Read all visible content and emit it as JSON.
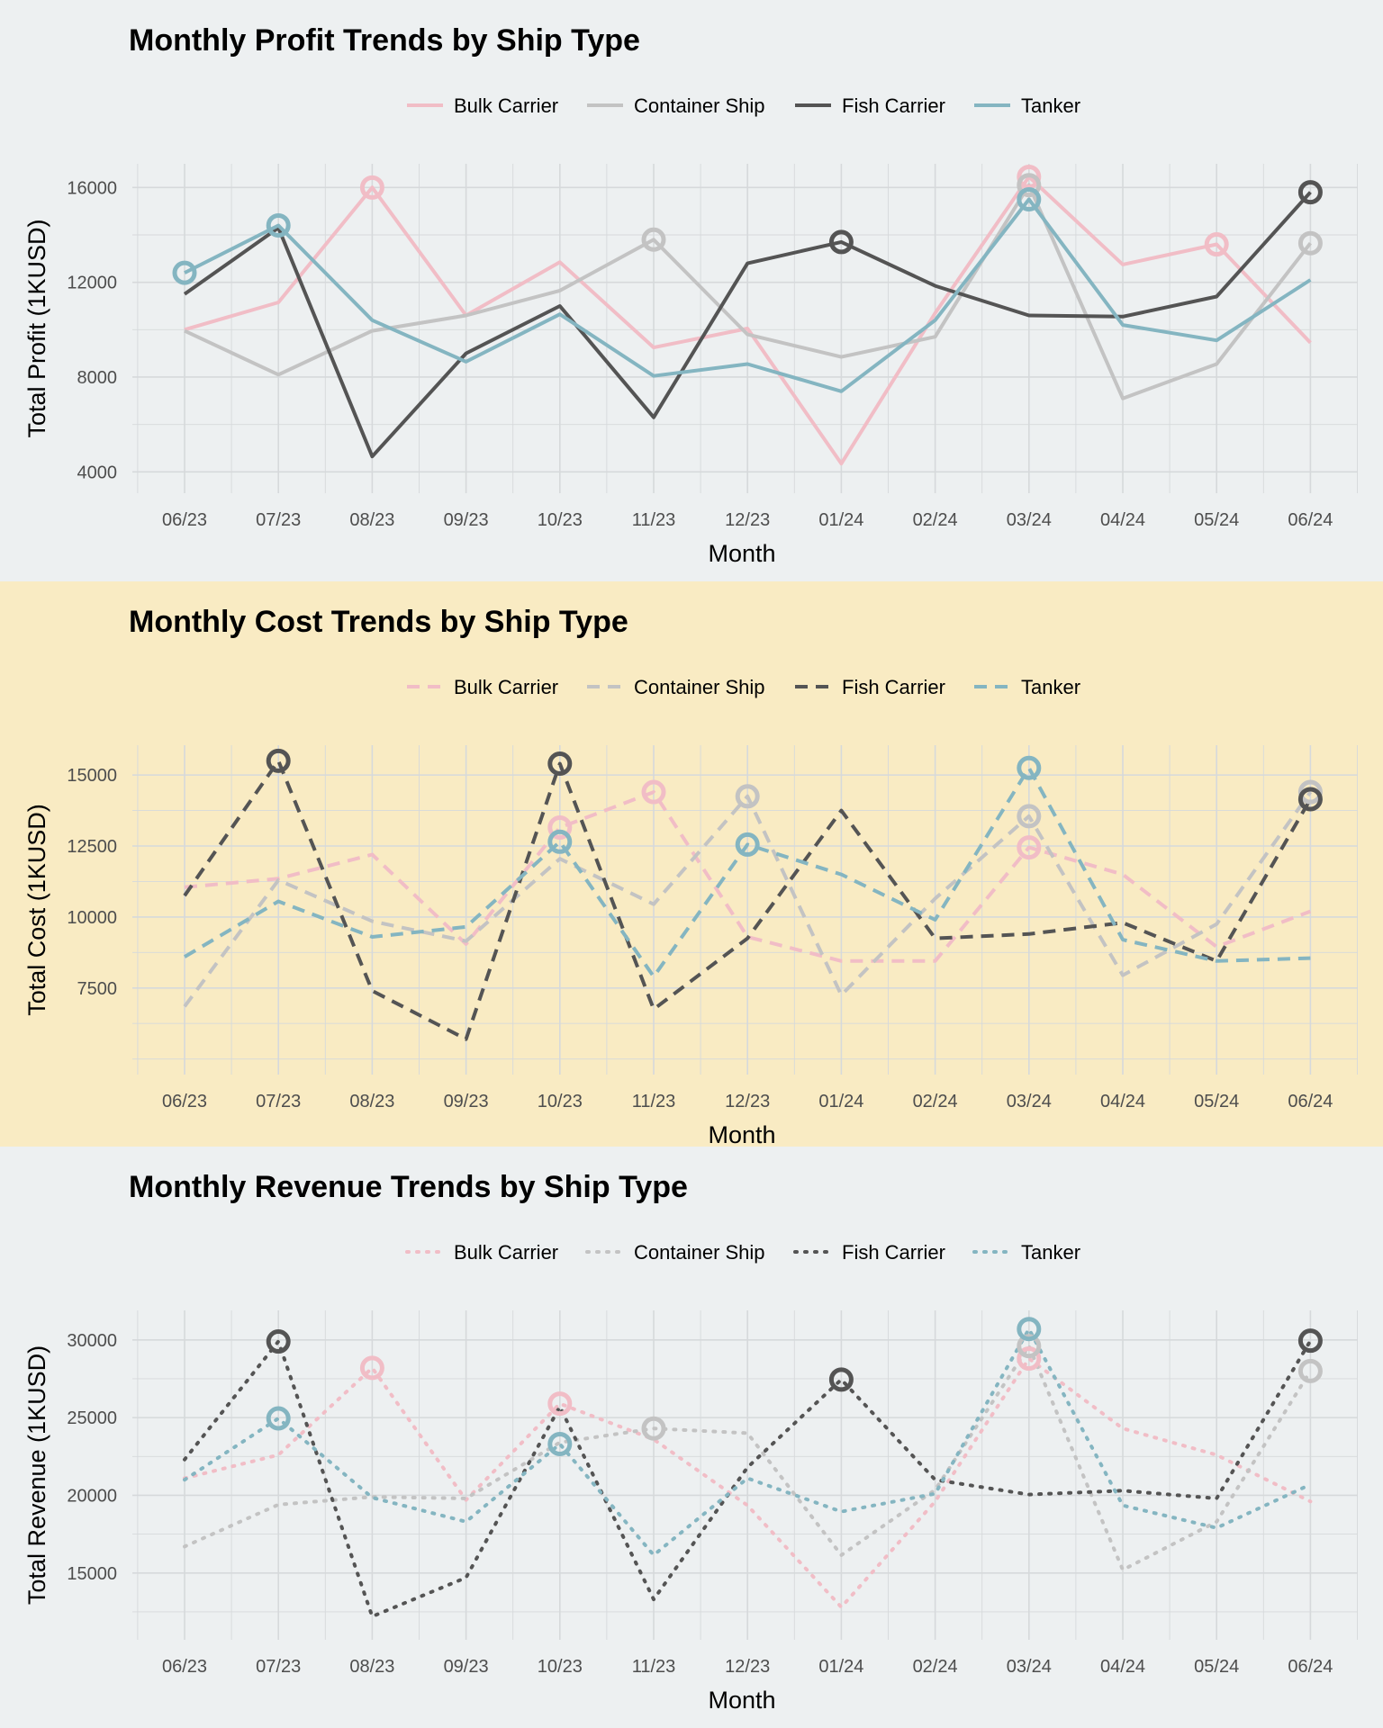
{
  "chart_data": [
    {
      "type": "line",
      "title": "Monthly Profit Trends by Ship Type",
      "xlabel": "Month",
      "ylabel": "Total Profit (1KUSD)",
      "ylim": [
        3100,
        17000
      ],
      "yticks": [
        4000,
        8000,
        12000,
        16000
      ],
      "minor_step": 2000,
      "line_style": "solid",
      "background": "#edf0f1",
      "legend_position": "top",
      "grid": true,
      "categories": [
        "06/23",
        "07/23",
        "08/23",
        "09/23",
        "10/23",
        "11/23",
        "12/23",
        "01/24",
        "02/24",
        "03/24",
        "04/24",
        "05/24",
        "06/24"
      ],
      "series": [
        {
          "name": "Bulk Carrier",
          "color": "#f1bdc6",
          "values": [
            10000,
            11150,
            16000,
            10600,
            12850,
            9250,
            10050,
            4350,
            10700,
            16450,
            12750,
            13600,
            9450
          ],
          "highlight": [
            2,
            9,
            11
          ]
        },
        {
          "name": "Container Ship",
          "color": "#c3c3c3",
          "values": [
            9950,
            8100,
            9950,
            10600,
            11650,
            13800,
            9800,
            8850,
            9700,
            16100,
            7100,
            8550,
            13650
          ],
          "highlight": [
            5,
            9,
            12
          ]
        },
        {
          "name": "Fish Carrier",
          "color": "#545454",
          "values": [
            11500,
            14300,
            4650,
            9000,
            11000,
            6300,
            12800,
            13700,
            11850,
            10600,
            10550,
            11400,
            15800
          ],
          "highlight": [
            7,
            12
          ]
        },
        {
          "name": "Tanker",
          "color": "#84b5c1",
          "values": [
            12400,
            14400,
            10400,
            8650,
            10650,
            8050,
            8550,
            7400,
            10400,
            15500,
            10200,
            9550,
            12100
          ],
          "highlight": [
            0,
            1,
            9
          ]
        }
      ]
    },
    {
      "type": "line",
      "title": "Monthly Cost Trends by Ship Type",
      "xlabel": "Month",
      "ylabel": "Total Cost (1KUSD)",
      "ylim": [
        4450,
        16050
      ],
      "yticks": [
        7500,
        10000,
        12500,
        15000
      ],
      "minor_step": 1250,
      "line_style": "dashed",
      "background": "#f9ebc3",
      "legend_position": "top",
      "grid": true,
      "categories": [
        "06/23",
        "07/23",
        "08/23",
        "09/23",
        "10/23",
        "11/23",
        "12/23",
        "01/24",
        "02/24",
        "03/24",
        "04/24",
        "05/24",
        "06/24"
      ],
      "series": [
        {
          "name": "Bulk Carrier",
          "color": "#f1bdc6",
          "values": [
            11050,
            11350,
            12200,
            9050,
            13150,
            14400,
            9300,
            8450,
            8450,
            12450,
            11500,
            8950,
            10200
          ],
          "highlight": [
            4,
            5,
            9
          ]
        },
        {
          "name": "Container Ship",
          "color": "#c3c3c3",
          "values": [
            6850,
            11300,
            9850,
            9150,
            12050,
            10450,
            14250,
            7250,
            10650,
            13550,
            7950,
            9750,
            14400
          ],
          "highlight": [
            6,
            9,
            12
          ]
        },
        {
          "name": "Fish Carrier",
          "color": "#545454",
          "values": [
            10750,
            15500,
            7400,
            5700,
            15400,
            6750,
            9250,
            13750,
            9250,
            9400,
            9800,
            8450,
            14150
          ],
          "highlight": [
            1,
            4,
            12
          ]
        },
        {
          "name": "Tanker",
          "color": "#84b5c1",
          "values": [
            8600,
            10550,
            9300,
            9650,
            12650,
            7900,
            12550,
            11500,
            9900,
            15250,
            9200,
            8450,
            8550
          ],
          "highlight": [
            4,
            6,
            9
          ]
        }
      ]
    },
    {
      "type": "line",
      "title": "Monthly Revenue Trends by Ship Type",
      "xlabel": "Month",
      "ylabel": "Total Revenue (1KUSD)",
      "ylim": [
        10700,
        31900
      ],
      "yticks": [
        15000,
        20000,
        25000,
        30000
      ],
      "minor_step": 2500,
      "line_style": "dotted",
      "background": "#edf0f1",
      "legend_position": "top",
      "grid": true,
      "categories": [
        "06/23",
        "07/23",
        "08/23",
        "09/23",
        "10/23",
        "11/23",
        "12/23",
        "01/24",
        "02/24",
        "03/24",
        "04/24",
        "05/24",
        "06/24"
      ],
      "series": [
        {
          "name": "Bulk Carrier",
          "color": "#f1bdc6",
          "values": [
            21100,
            22600,
            28200,
            19700,
            25900,
            23600,
            19350,
            12800,
            19600,
            28800,
            24300,
            22600,
            19600
          ],
          "highlight": [
            2,
            4,
            9
          ]
        },
        {
          "name": "Container Ship",
          "color": "#c3c3c3",
          "values": [
            16700,
            19400,
            19900,
            19800,
            23400,
            24300,
            24000,
            16150,
            20350,
            29600,
            15200,
            18300,
            28000
          ],
          "highlight": [
            5,
            9,
            12
          ]
        },
        {
          "name": "Fish Carrier",
          "color": "#545454",
          "values": [
            22300,
            29900,
            12200,
            14700,
            25700,
            13300,
            21800,
            27450,
            21000,
            20050,
            20300,
            19800,
            29950
          ],
          "highlight": [
            1,
            7,
            12
          ]
        },
        {
          "name": "Tanker",
          "color": "#84b5c1",
          "values": [
            21000,
            24950,
            19850,
            18300,
            23300,
            16150,
            21100,
            18950,
            20100,
            30700,
            19350,
            17900,
            20700
          ],
          "highlight": [
            1,
            4,
            9
          ]
        }
      ]
    }
  ]
}
